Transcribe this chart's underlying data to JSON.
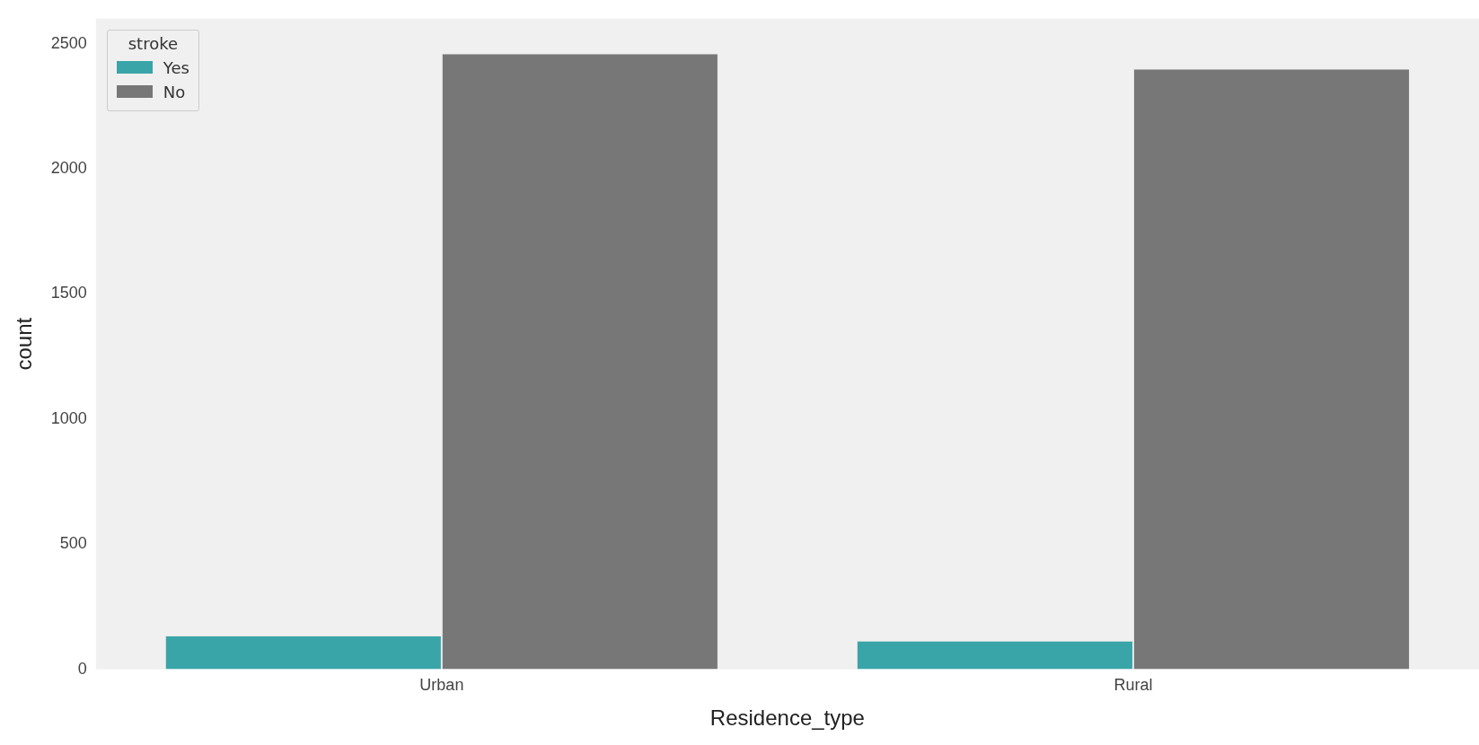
{
  "chart_data": {
    "type": "bar",
    "xlabel": "Residence_type",
    "ylabel": "count",
    "legend_title": "stroke",
    "categories": [
      "Urban",
      "Rural"
    ],
    "series": [
      {
        "name": "Yes",
        "color": "#3aa5a8",
        "values": [
          135,
          114
        ]
      },
      {
        "name": "No",
        "color": "#777777",
        "values": [
          2461,
          2400
        ]
      }
    ],
    "ylim": [
      0,
      2600
    ],
    "yticks": [
      0,
      500,
      1000,
      1500,
      2000,
      2500
    ],
    "grid": false,
    "legend": "top left"
  }
}
